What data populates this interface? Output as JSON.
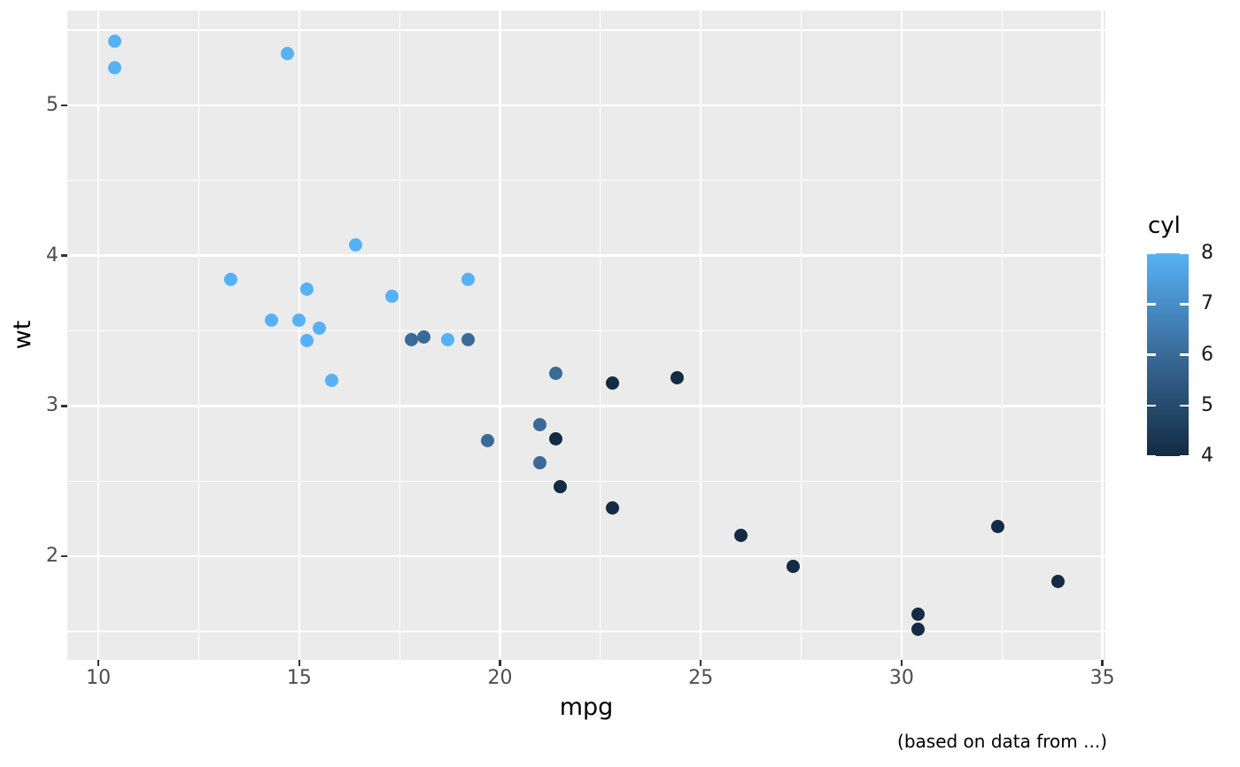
{
  "chart_data": {
    "type": "scatter",
    "title": "",
    "xlabel": "mpg",
    "ylabel": "wt",
    "caption": "(based on data from ...)",
    "xlim": [
      9.225,
      35.075
    ],
    "ylim": [
      1.312,
      5.63
    ],
    "x_breaks": [
      10,
      15,
      20,
      25,
      30,
      35
    ],
    "x_minor_breaks": [
      12.5,
      17.5,
      22.5,
      27.5,
      32.5
    ],
    "y_breaks": [
      2,
      3,
      4,
      5
    ],
    "y_minor_breaks": [
      1.5,
      2.5,
      3.5,
      4.5,
      5.5
    ],
    "grid": true,
    "legend": {
      "title": "cyl",
      "position": "right",
      "breaks": [
        4,
        5,
        6,
        7,
        8
      ],
      "limits": [
        4,
        8
      ]
    },
    "color_scale": {
      "low_value": 4,
      "high_value": 8,
      "low": "#132B43",
      "mid": "#3A6A98",
      "high": "#56B1F7"
    },
    "style": {
      "panel_bg": "#EBEBEB",
      "grid_color": "#FFFFFF",
      "tick_color": "#333333",
      "tick_label_color": "#4D4D4D",
      "title_color": "#000000"
    },
    "points": [
      {
        "mpg": 21.0,
        "wt": 2.62,
        "cyl": 6
      },
      {
        "mpg": 21.0,
        "wt": 2.875,
        "cyl": 6
      },
      {
        "mpg": 22.8,
        "wt": 2.32,
        "cyl": 4
      },
      {
        "mpg": 21.4,
        "wt": 3.215,
        "cyl": 6
      },
      {
        "mpg": 18.7,
        "wt": 3.44,
        "cyl": 8
      },
      {
        "mpg": 18.1,
        "wt": 3.46,
        "cyl": 6
      },
      {
        "mpg": 14.3,
        "wt": 3.57,
        "cyl": 8
      },
      {
        "mpg": 24.4,
        "wt": 3.19,
        "cyl": 4
      },
      {
        "mpg": 22.8,
        "wt": 3.15,
        "cyl": 4
      },
      {
        "mpg": 19.2,
        "wt": 3.44,
        "cyl": 6
      },
      {
        "mpg": 17.8,
        "wt": 3.44,
        "cyl": 6
      },
      {
        "mpg": 16.4,
        "wt": 4.07,
        "cyl": 8
      },
      {
        "mpg": 17.3,
        "wt": 3.73,
        "cyl": 8
      },
      {
        "mpg": 15.2,
        "wt": 3.78,
        "cyl": 8
      },
      {
        "mpg": 10.4,
        "wt": 5.25,
        "cyl": 8
      },
      {
        "mpg": 10.4,
        "wt": 5.424,
        "cyl": 8
      },
      {
        "mpg": 14.7,
        "wt": 5.345,
        "cyl": 8
      },
      {
        "mpg": 32.4,
        "wt": 2.2,
        "cyl": 4
      },
      {
        "mpg": 30.4,
        "wt": 1.615,
        "cyl": 4
      },
      {
        "mpg": 33.9,
        "wt": 1.835,
        "cyl": 4
      },
      {
        "mpg": 21.5,
        "wt": 2.465,
        "cyl": 4
      },
      {
        "mpg": 15.5,
        "wt": 3.52,
        "cyl": 8
      },
      {
        "mpg": 15.2,
        "wt": 3.435,
        "cyl": 8
      },
      {
        "mpg": 13.3,
        "wt": 3.84,
        "cyl": 8
      },
      {
        "mpg": 19.2,
        "wt": 3.845,
        "cyl": 8
      },
      {
        "mpg": 27.3,
        "wt": 1.935,
        "cyl": 4
      },
      {
        "mpg": 26.0,
        "wt": 2.14,
        "cyl": 4
      },
      {
        "mpg": 30.4,
        "wt": 1.513,
        "cyl": 4
      },
      {
        "mpg": 15.8,
        "wt": 3.17,
        "cyl": 8
      },
      {
        "mpg": 19.7,
        "wt": 2.77,
        "cyl": 6
      },
      {
        "mpg": 15.0,
        "wt": 3.57,
        "cyl": 8
      },
      {
        "mpg": 21.4,
        "wt": 2.78,
        "cyl": 4
      }
    ]
  }
}
